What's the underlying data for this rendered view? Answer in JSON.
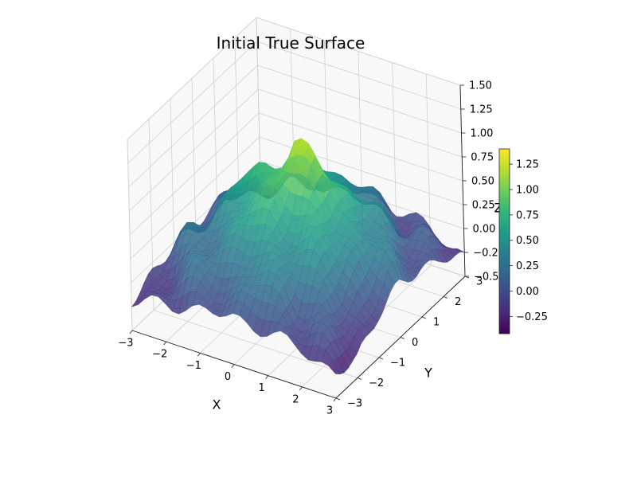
{
  "chart_data": {
    "type": "surface3d",
    "title": "Initial True Surface",
    "xlabel": "X",
    "ylabel": "Y",
    "zlabel": "Z",
    "x_range": [
      -3,
      3
    ],
    "y_range": [
      -3,
      3
    ],
    "zlim": [
      -0.5,
      1.5
    ],
    "x_ticks": [
      "−3",
      "−2",
      "−1",
      "0",
      "1",
      "2",
      "3"
    ],
    "y_ticks": [
      "−3",
      "−2",
      "−1",
      "0",
      "1",
      "2",
      "3"
    ],
    "z_ticks": [
      "−0.50",
      "−0.25",
      "0.00",
      "0.25",
      "0.50",
      "0.75",
      "1.00",
      "1.25",
      "1.50"
    ],
    "colormap": "viridis",
    "grid": true,
    "surface_samples": {
      "y": [
        -3,
        -2,
        -1,
        0,
        1,
        2,
        3
      ],
      "x": [
        -3,
        -2,
        -1,
        0,
        1,
        2,
        3
      ],
      "z": [
        [
          -0.2,
          -0.1,
          -0.05,
          0.0,
          -0.05,
          -0.1,
          -0.25
        ],
        [
          -0.1,
          0.1,
          0.25,
          0.35,
          0.3,
          0.1,
          -0.3
        ],
        [
          -0.05,
          0.3,
          0.55,
          0.75,
          0.6,
          0.3,
          -0.05
        ],
        [
          0.0,
          0.4,
          0.8,
          1.2,
          0.85,
          0.45,
          0.05
        ],
        [
          -0.05,
          0.3,
          0.6,
          0.8,
          0.55,
          0.3,
          0.0
        ],
        [
          -0.1,
          0.1,
          0.3,
          0.35,
          0.25,
          0.05,
          -0.1
        ],
        [
          -0.25,
          -0.1,
          0.0,
          0.05,
          -0.05,
          -0.1,
          -0.3
        ]
      ]
    },
    "colorbar": {
      "range": [
        -0.42,
        1.4
      ],
      "ticks": [
        "−0.25",
        "0.00",
        "0.25",
        "0.50",
        "0.75",
        "1.00",
        "1.25"
      ],
      "tick_values": [
        -0.25,
        0,
        0.25,
        0.5,
        0.75,
        1.0,
        1.25
      ]
    }
  }
}
